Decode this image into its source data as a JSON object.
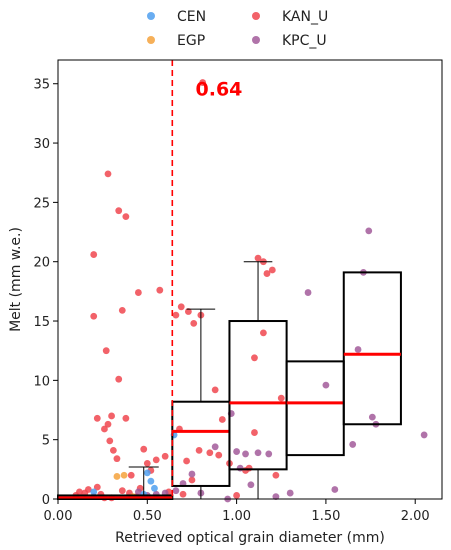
{
  "chart_data": {
    "type": "scatter",
    "title": "",
    "xlabel": "Retrieved optical grain diameter (mm)",
    "ylabel": "Melt (mm w.e.)",
    "xlim": [
      0.0,
      2.15
    ],
    "ylim": [
      0,
      37
    ],
    "xticks": [
      0.0,
      0.5,
      1.0,
      1.5,
      2.0
    ],
    "xtick_labels": [
      "0.00",
      "0.50",
      "1.00",
      "1.50",
      "2.00"
    ],
    "yticks": [
      0,
      5,
      10,
      15,
      20,
      25,
      30,
      35
    ],
    "ytick_labels": [
      "0",
      "5",
      "10",
      "15",
      "20",
      "25",
      "30",
      "35"
    ],
    "grid": false,
    "legend": {
      "placement": "top-center (outside)",
      "entries": [
        {
          "name": "CEN",
          "color": "#4f9fef"
        },
        {
          "name": "EGP",
          "color": "#f5a23c"
        },
        {
          "name": "KAN_U",
          "color": "#f0474f"
        },
        {
          "name": "KPC_U",
          "color": "#a25a9a"
        }
      ]
    },
    "threshold": {
      "x": 0.64,
      "label": "0.64",
      "color": "#ff0000",
      "style": "dashed"
    },
    "series": [
      {
        "name": "KAN_U",
        "color": "#f0474f",
        "points": [
          [
            0.28,
            27.4
          ],
          [
            0.34,
            24.3
          ],
          [
            0.38,
            23.8
          ],
          [
            0.2,
            20.6
          ],
          [
            0.45,
            17.4
          ],
          [
            0.57,
            17.6
          ],
          [
            0.2,
            15.4
          ],
          [
            0.36,
            15.9
          ],
          [
            0.27,
            12.5
          ],
          [
            0.34,
            10.1
          ],
          [
            0.22,
            6.8
          ],
          [
            0.26,
            5.9
          ],
          [
            0.28,
            6.3
          ],
          [
            0.3,
            7.0
          ],
          [
            0.38,
            6.8
          ],
          [
            0.29,
            4.9
          ],
          [
            0.31,
            4.1
          ],
          [
            0.33,
            3.4
          ],
          [
            0.22,
            1.0
          ],
          [
            0.17,
            0.8
          ],
          [
            0.24,
            0.4
          ],
          [
            0.1,
            0.3
          ],
          [
            0.12,
            0.6
          ],
          [
            0.2,
            0.2
          ],
          [
            0.3,
            0.1
          ],
          [
            0.36,
            0.7
          ],
          [
            0.4,
            0.5
          ],
          [
            0.46,
            0.9
          ],
          [
            0.5,
            3.0
          ],
          [
            0.48,
            4.2
          ],
          [
            0.52,
            2.4
          ],
          [
            0.55,
            3.3
          ],
          [
            0.6,
            3.6
          ],
          [
            0.62,
            0.6
          ],
          [
            0.66,
            15.5
          ],
          [
            0.69,
            16.2
          ],
          [
            0.73,
            15.8
          ],
          [
            0.76,
            14.8
          ],
          [
            0.8,
            15.5
          ],
          [
            0.81,
            35.1
          ],
          [
            0.68,
            5.9
          ],
          [
            0.72,
            3.2
          ],
          [
            0.7,
            0.4
          ],
          [
            0.75,
            1.6
          ],
          [
            0.79,
            4.1
          ],
          [
            0.85,
            3.9
          ],
          [
            0.88,
            9.2
          ],
          [
            0.92,
            6.7
          ],
          [
            0.96,
            3.0
          ],
          [
            1.0,
            0.3
          ],
          [
            1.05,
            2.4
          ],
          [
            1.07,
            2.6
          ],
          [
            1.1,
            11.9
          ],
          [
            1.12,
            20.3
          ],
          [
            1.15,
            20.0
          ],
          [
            1.17,
            19.0
          ],
          [
            1.2,
            19.3
          ],
          [
            1.15,
            14.0
          ],
          [
            1.25,
            8.5
          ],
          [
            0.9,
            3.7
          ],
          [
            1.1,
            5.6
          ],
          [
            1.22,
            2.0
          ],
          [
            0.26,
            0.1
          ],
          [
            0.15,
            0.5
          ],
          [
            0.41,
            2.0
          ],
          [
            0.44,
            0.2
          ]
        ]
      },
      {
        "name": "KPC_U",
        "color": "#a25a9a",
        "points": [
          [
            0.66,
            0.7
          ],
          [
            0.7,
            1.3
          ],
          [
            0.75,
            2.1
          ],
          [
            0.8,
            0.5
          ],
          [
            0.88,
            4.4
          ],
          [
            0.95,
            0.0
          ],
          [
            0.97,
            7.2
          ],
          [
            1.0,
            4.0
          ],
          [
            1.02,
            2.6
          ],
          [
            1.05,
            3.8
          ],
          [
            1.08,
            1.2
          ],
          [
            1.12,
            3.9
          ],
          [
            1.18,
            3.8
          ],
          [
            1.22,
            0.2
          ],
          [
            1.3,
            0.5
          ],
          [
            1.4,
            17.4
          ],
          [
            1.5,
            9.6
          ],
          [
            1.55,
            0.8
          ],
          [
            1.65,
            4.6
          ],
          [
            1.68,
            12.6
          ],
          [
            1.71,
            19.1
          ],
          [
            1.74,
            22.6
          ],
          [
            1.76,
            6.9
          ],
          [
            1.78,
            6.3
          ],
          [
            2.05,
            5.4
          ],
          [
            0.45,
            0.6
          ],
          [
            0.55,
            0.4
          ],
          [
            0.6,
            0.5
          ],
          [
            0.5,
            0.3
          ]
        ]
      },
      {
        "name": "CEN",
        "color": "#4f9fef",
        "points": [
          [
            0.5,
            2.2
          ],
          [
            0.52,
            1.5
          ],
          [
            0.65,
            5.4
          ],
          [
            0.54,
            0.9
          ],
          [
            0.48,
            0.4
          ],
          [
            0.2,
            0.6
          ]
        ]
      },
      {
        "name": "EGP",
        "color": "#f5a23c",
        "points": [
          [
            0.33,
            1.9
          ],
          [
            0.37,
            2.0
          ],
          [
            0.42,
            0.2
          ]
        ]
      }
    ],
    "boxes": [
      {
        "x_range": [
          0.0,
          0.64
        ],
        "whisker_low": 0.0,
        "q1": 0.0,
        "median": 0.1,
        "q3": 0.3,
        "whisker_high": 0.3
      },
      {
        "x_range": [
          0.64,
          0.96
        ],
        "whisker_low": 0.0,
        "q1": 1.1,
        "median": 5.7,
        "q3": 8.2,
        "whisker_high": 16.0
      },
      {
        "x_range": [
          0.96,
          1.28
        ],
        "whisker_low": 0.0,
        "q1": 2.5,
        "median": 8.1,
        "q3": 15.0,
        "whisker_high": 20.0
      },
      {
        "x_range": [
          1.28,
          1.6
        ],
        "whisker_low": 3.7,
        "q1": 3.7,
        "median": 8.1,
        "q3": 11.6,
        "whisker_high": 11.6
      },
      {
        "x_range": [
          1.6,
          1.92
        ],
        "whisker_low": 6.3,
        "q1": 6.3,
        "median": 12.2,
        "q3": 19.1,
        "whisker_high": 19.1
      }
    ],
    "small_whisker": {
      "x": 0.48,
      "value": 2.7
    }
  }
}
